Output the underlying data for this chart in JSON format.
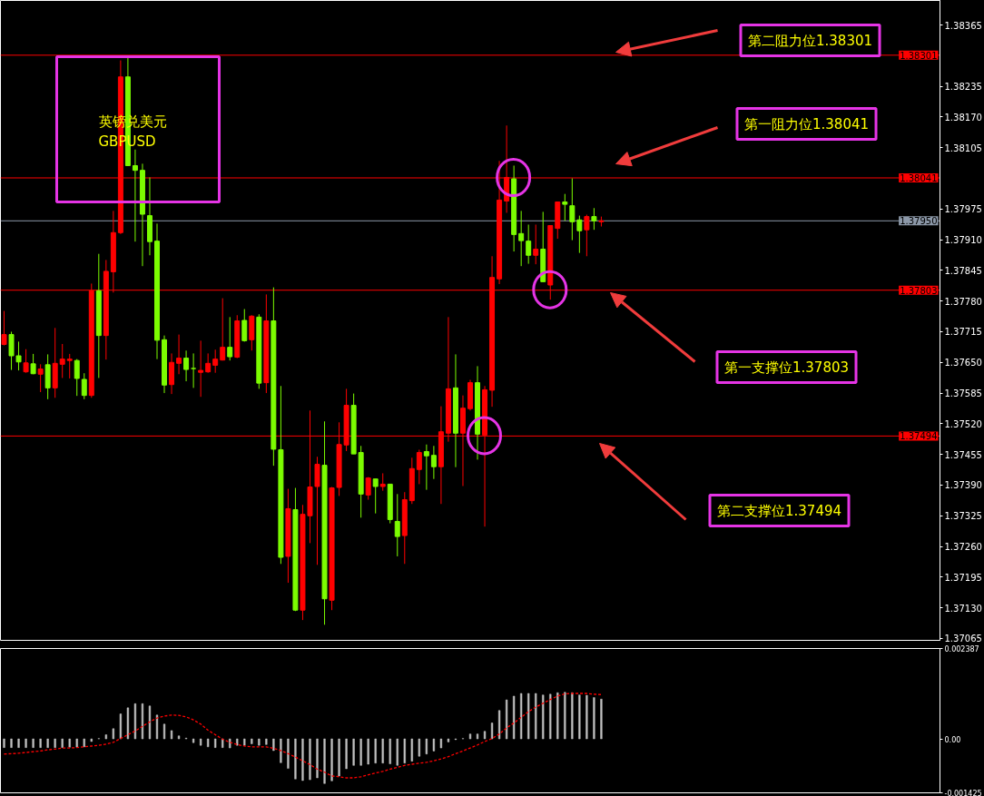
{
  "chart_data": [
    {
      "type": "candlestick",
      "title": "英镑兑美元",
      "subtitle": "GBPUSD",
      "categories": [
        null,
        null,
        null,
        null,
        null,
        null,
        null,
        null,
        null,
        null,
        null,
        null,
        null,
        null,
        null,
        null,
        null,
        null,
        null,
        null,
        null,
        null,
        null,
        null,
        null,
        null,
        null,
        null,
        null,
        null,
        null,
        null,
        null,
        null,
        null,
        null,
        null,
        null,
        null,
        null,
        null,
        null,
        null,
        null,
        null,
        null,
        null,
        null,
        null,
        null,
        null,
        null,
        null,
        null,
        null,
        null,
        null,
        null,
        null,
        null,
        null,
        null,
        null,
        null,
        null,
        null,
        null,
        null,
        null,
        null,
        null,
        null,
        null,
        null,
        null,
        null,
        null,
        null,
        null,
        null,
        null,
        null,
        null,
        null,
        null,
        null,
        null,
        null,
        null,
        null,
        null,
        null,
        null,
        null,
        null,
        null,
        null,
        null,
        null,
        null,
        null,
        null,
        null,
        null,
        null,
        null,
        null,
        null,
        null,
        null,
        null,
        null,
        null,
        null,
        null,
        null,
        null,
        null,
        null,
        null,
        null,
        null,
        null,
        null,
        null,
        null,
        null,
        null,
        null
      ],
      "ohlc": [
        [
          1.37688,
          1.37759,
          1.37686,
          1.37709
        ],
        [
          1.37709,
          1.37715,
          1.37634,
          1.37664
        ],
        [
          1.37664,
          1.37694,
          1.37633,
          1.37651
        ],
        [
          1.3763,
          1.37678,
          1.37628,
          1.37649
        ],
        [
          1.37647,
          1.37668,
          1.37625,
          1.37626
        ],
        [
          1.37625,
          1.37646,
          1.37587,
          1.37636
        ],
        [
          1.37645,
          1.37667,
          1.37572,
          1.37596
        ],
        [
          1.37596,
          1.37723,
          1.37575,
          1.37648
        ],
        [
          1.37646,
          1.37689,
          1.37617,
          1.37657
        ],
        [
          1.37654,
          1.37668,
          1.37616,
          1.37657
        ],
        [
          1.37654,
          1.37657,
          1.37579,
          1.37616
        ],
        [
          1.37614,
          1.37627,
          1.37572,
          1.3758
        ],
        [
          1.3758,
          1.37817,
          1.37575,
          1.37802
        ],
        [
          1.37802,
          1.3788,
          1.37617,
          1.37707
        ],
        [
          1.37707,
          1.37867,
          1.37656,
          1.37843
        ],
        [
          1.37842,
          1.37971,
          1.37798,
          1.37925
        ],
        [
          1.37925,
          1.3829,
          1.37922,
          1.38255
        ],
        [
          1.38255,
          1.38299,
          1.38067,
          1.38067
        ],
        [
          1.38067,
          1.38101,
          1.37906,
          1.38057
        ],
        [
          1.38057,
          1.38071,
          1.37854,
          1.37964
        ],
        [
          1.37961,
          1.38042,
          1.37877,
          1.37906
        ],
        [
          1.37907,
          1.37944,
          1.37657,
          1.37697
        ],
        [
          1.37698,
          1.37707,
          1.37585,
          1.37602
        ],
        [
          1.37603,
          1.37669,
          1.37583,
          1.3765
        ],
        [
          1.37648,
          1.37709,
          1.37625,
          1.37659
        ],
        [
          1.37659,
          1.37675,
          1.3761,
          1.37635
        ],
        [
          1.37637,
          1.37669,
          1.37596,
          1.37637
        ],
        [
          1.37629,
          1.37696,
          1.37577,
          1.37633
        ],
        [
          1.3763,
          1.37669,
          1.37628,
          1.37648
        ],
        [
          1.37644,
          1.37677,
          1.37628,
          1.37657
        ],
        [
          1.37655,
          1.37786,
          1.37654,
          1.37682
        ],
        [
          1.37682,
          1.37746,
          1.37654,
          1.37662
        ],
        [
          1.37661,
          1.3775,
          1.37659,
          1.37738
        ],
        [
          1.37739,
          1.37763,
          1.37694,
          1.37696
        ],
        [
          1.37698,
          1.3775,
          1.37675,
          1.37748
        ],
        [
          1.37746,
          1.37752,
          1.37594,
          1.37606
        ],
        [
          1.37607,
          1.37794,
          1.37585,
          1.37738
        ],
        [
          1.37738,
          1.37809,
          1.37431,
          1.37466
        ],
        [
          1.37465,
          1.376,
          1.37223,
          1.37237
        ],
        [
          1.37239,
          1.37382,
          1.37183,
          1.3734
        ],
        [
          1.37338,
          1.37384,
          1.37123,
          1.37125
        ],
        [
          1.37125,
          1.37348,
          1.37104,
          1.37328
        ],
        [
          1.37325,
          1.37548,
          1.37267,
          1.37386
        ],
        [
          1.37387,
          1.3745,
          1.37221,
          1.37434
        ],
        [
          1.37432,
          1.37525,
          1.37094,
          1.37149
        ],
        [
          1.37146,
          1.37386,
          1.37125,
          1.37384
        ],
        [
          1.37385,
          1.37523,
          1.37367,
          1.37476
        ],
        [
          1.37475,
          1.37594,
          1.37462,
          1.37559
        ],
        [
          1.37559,
          1.37584,
          1.37456,
          1.37456
        ],
        [
          1.37459,
          1.37473,
          1.37321,
          1.37371
        ],
        [
          1.37369,
          1.37407,
          1.37359,
          1.37405
        ],
        [
          1.37403,
          1.37403,
          1.3733,
          1.37387
        ],
        [
          1.37387,
          1.37415,
          1.37378,
          1.37392
        ],
        [
          1.37392,
          1.37392,
          1.37309,
          1.37317
        ],
        [
          1.37313,
          1.37371,
          1.37239,
          1.37281
        ],
        [
          1.37283,
          1.37375,
          1.37223,
          1.37359
        ],
        [
          1.37357,
          1.37448,
          1.3735,
          1.37425
        ],
        [
          1.37423,
          1.37465,
          1.37392,
          1.37459
        ],
        [
          1.37461,
          1.37476,
          1.3738,
          1.37452
        ],
        [
          1.37453,
          1.37473,
          1.37403,
          1.37429
        ],
        [
          1.37429,
          1.37557,
          1.3735,
          1.37503
        ],
        [
          1.375,
          1.37746,
          1.37482,
          1.37594
        ],
        [
          1.37596,
          1.37667,
          1.37428,
          1.375
        ],
        [
          1.375,
          1.3758,
          1.37388,
          1.37553
        ],
        [
          1.37552,
          1.37613,
          1.37548,
          1.37607
        ],
        [
          1.37607,
          1.37642,
          1.37444,
          1.37498
        ],
        [
          1.37496,
          1.376,
          1.37302,
          1.37592
        ],
        [
          1.37591,
          1.37875,
          1.37556,
          1.3783
        ],
        [
          1.37827,
          1.38077,
          1.37816,
          1.37994
        ],
        [
          1.37992,
          1.38152,
          1.37967,
          1.38042
        ],
        [
          1.38039,
          1.38067,
          1.37885,
          1.37921
        ],
        [
          1.37923,
          1.37971,
          1.37854,
          1.37908
        ],
        [
          1.37907,
          1.37942,
          1.37859,
          1.37877
        ],
        [
          1.37877,
          1.37942,
          1.37858,
          1.3789
        ],
        [
          1.3789,
          1.37969,
          1.37821,
          1.37821
        ],
        [
          1.37814,
          1.3794,
          1.37783,
          1.3794
        ],
        [
          1.37934,
          1.3799,
          1.37912,
          1.3799
        ],
        [
          1.3799,
          1.38007,
          1.3795,
          1.37985
        ],
        [
          1.37982,
          1.3804,
          1.37909,
          1.37948
        ],
        [
          1.37952,
          1.37961,
          1.37882,
          1.37929
        ],
        [
          1.37931,
          1.37963,
          1.37875,
          1.37959
        ],
        [
          1.37959,
          1.37977,
          1.37931,
          1.3795
        ],
        [
          1.37948,
          1.37959,
          1.37938,
          1.3795
        ],
        null,
        null,
        null,
        null,
        null,
        null,
        null,
        null,
        null,
        null,
        null,
        null,
        null,
        null,
        null,
        null,
        null,
        null,
        null,
        null,
        null,
        null,
        null,
        null,
        null,
        null,
        null,
        null,
        null,
        null,
        null,
        null,
        null,
        null,
        null,
        null,
        null,
        null,
        null,
        null,
        null,
        null,
        null,
        null,
        null,
        null
      ],
      "colors": [
        "#ff0000",
        "#7cfc00",
        "#7cfc00",
        "#ff0000",
        "#7cfc00",
        "#ff0000",
        "#7cfc00",
        "#ff0000",
        "#ff0000",
        "#ff0000",
        "#7cfc00",
        "#7cfc00",
        "#ff0000",
        "#7cfc00",
        "#ff0000",
        "#ff0000",
        "#ff0000",
        "#7cfc00",
        "#7cfc00",
        "#7cfc00",
        "#7cfc00",
        "#7cfc00",
        "#7cfc00",
        "#ff0000",
        "#ff0000",
        "#7cfc00",
        "#7cfc00",
        "#ff0000",
        "#ff0000",
        "#ff0000",
        "#ff0000",
        "#7cfc00",
        "#ff0000",
        "#7cfc00",
        "#ff0000",
        "#7cfc00",
        "#ff0000",
        "#7cfc00",
        "#7cfc00",
        "#ff0000",
        "#7cfc00",
        "#ff0000",
        "#ff0000",
        "#ff0000",
        "#7cfc00",
        "#ff0000",
        "#ff0000",
        "#ff0000",
        "#7cfc00",
        "#7cfc00",
        "#ff0000",
        "#7cfc00",
        "#ff0000",
        "#7cfc00",
        "#7cfc00",
        "#ff0000",
        "#ff0000",
        "#ff0000",
        "#7cfc00",
        "#7cfc00",
        "#ff0000",
        "#ff0000",
        "#7cfc00",
        "#ff0000",
        "#ff0000",
        "#7cfc00",
        "#ff0000",
        "#ff0000",
        "#ff0000",
        "#ff0000",
        "#7cfc00",
        "#7cfc00",
        "#7cfc00",
        "#ff0000",
        "#7cfc00",
        "#ff0000",
        "#ff0000",
        "#7cfc00",
        "#7cfc00",
        "#7cfc00",
        "#ff0000",
        "#7cfc00",
        "#ff0000",
        null,
        null,
        null,
        null,
        null,
        null,
        null,
        null,
        null,
        null,
        null,
        null,
        null,
        null,
        null,
        null,
        null,
        null,
        null,
        null,
        null,
        null,
        null,
        null,
        null,
        null,
        null,
        null,
        null,
        null,
        null,
        null,
        null,
        null,
        null,
        null,
        null,
        null,
        null,
        null,
        null,
        null,
        null,
        null,
        null,
        null
      ],
      "ylim": [
        1.37061,
        1.38417
      ],
      "yticks": [
        1.38365,
        1.38235,
        {
          "value": 1.3817,
          "label": "1.38170"
        },
        1.38105,
        1.37975,
        {
          "value": 1.3791,
          "label": "1.37910"
        },
        1.37845,
        {
          "value": 1.3778,
          "label": "1.37780"
        },
        1.37715,
        {
          "value": 1.3765,
          "label": "1.37650"
        },
        1.37585,
        {
          "value": 1.3752,
          "label": "1.37520"
        },
        1.37455,
        {
          "value": 1.3739,
          "label": "1.37390"
        },
        1.37325,
        {
          "value": 1.3726,
          "label": "1.37260"
        },
        1.37195,
        {
          "value": 1.3713,
          "label": "1.37130"
        },
        1.37065
      ],
      "ref_lines": [
        {
          "axis": "y",
          "value": 1.38301,
          "label": "1.38301",
          "color": "#ff0000"
        },
        {
          "axis": "y",
          "value": 1.38041,
          "label": "1.38041",
          "color": "#ff0000"
        },
        {
          "axis": "y",
          "value": 1.3795,
          "label": "1.37950",
          "color": "#8c98a8"
        },
        {
          "axis": "y",
          "value": 1.37803,
          "label": "1.37803",
          "color": "#ff0000"
        },
        {
          "axis": "y",
          "value": 1.37494,
          "label": "1.37494",
          "color": "#ff0000"
        }
      ],
      "annotations": [
        "第二阻力位1.38301",
        "第一阻力位1.38041",
        "第一支撑位1.37803",
        "第二支撑位1.37494"
      ],
      "tick_labels": "y"
    },
    {
      "type": "bar",
      "categories": [
        null,
        null,
        null,
        null,
        null,
        null,
        null,
        null,
        null,
        null,
        null,
        null,
        null,
        null,
        null,
        null,
        null,
        null,
        null,
        null,
        null,
        null,
        null,
        null,
        null,
        null,
        null,
        null,
        null,
        null,
        null,
        null,
        null,
        null,
        null,
        null,
        null,
        null,
        null,
        null,
        null,
        null,
        null,
        null,
        null,
        null,
        null,
        null,
        null,
        null,
        null,
        null,
        null,
        null,
        null,
        null,
        null,
        null,
        null,
        null,
        null,
        null,
        null,
        null,
        null,
        null,
        null,
        null,
        null,
        null,
        null,
        null,
        null,
        null,
        null,
        null,
        null,
        null,
        null,
        null,
        null,
        null,
        null,
        null,
        null,
        null,
        null,
        null,
        null,
        null,
        null,
        null,
        null,
        null,
        null,
        null,
        null,
        null,
        null,
        null,
        null,
        null,
        null,
        null,
        null,
        null,
        null,
        null,
        null,
        null,
        null,
        null,
        null,
        null,
        null,
        null,
        null,
        null,
        null,
        null,
        null,
        null,
        null,
        null,
        null,
        null,
        null,
        null,
        null
      ],
      "series": [
        {
          "type": "bar",
          "color": "#c0c0c0",
          "values": [
            -0.00023,
            -0.00023,
            -0.00023,
            -0.00023,
            -0.00023,
            -0.00023,
            -0.00023,
            -0.00023,
            -0.00023,
            -0.00022,
            -0.00022,
            -0.00021,
            -7e-05,
            1e-05,
            0.00011,
            0.00027,
            0.00066,
            0.00082,
            0.00093,
            0.00093,
            0.00087,
            0.00063,
            0.00039,
            0.00022,
            8e-05,
            2e-05,
            -0.0001,
            -0.00017,
            -0.00021,
            -0.00023,
            -0.00023,
            -0.00024,
            -0.00017,
            -0.00017,
            -0.00013,
            -0.00017,
            -0.00015,
            -0.00031,
            -0.00063,
            -0.00078,
            -0.00106,
            -0.0011,
            -0.00108,
            -0.00103,
            -0.00118,
            -0.00111,
            -0.00098,
            -0.00079,
            -0.0007,
            -0.0007,
            -0.00067,
            -0.00064,
            -0.00064,
            -0.00066,
            -0.0007,
            -0.00064,
            -0.00059,
            -0.00046,
            -0.0004,
            -0.00032,
            -0.00024,
            -8e-05,
            -2e-05,
            1e-05,
            0.00013,
            0.00013,
            0.0002,
            0.00042,
            0.00075,
            0.00103,
            0.00113,
            0.0012,
            0.0012,
            0.0012,
            0.00116,
            0.00118,
            0.00122,
            0.00123,
            0.00122,
            0.00116,
            0.00115,
            0.00109,
            0.00105,
            null,
            null,
            null,
            null,
            null,
            null,
            null,
            null,
            null,
            null,
            null,
            null,
            null,
            null,
            null,
            null,
            null,
            null,
            null,
            null,
            null,
            null,
            null,
            null,
            null,
            null,
            null,
            null,
            null,
            null,
            null,
            null,
            null,
            null,
            null,
            null,
            null,
            null,
            null,
            null,
            null,
            null,
            null,
            null,
            null,
            null
          ]
        },
        {
          "type": "line",
          "color": "#ff0000",
          "line_style": "dotted",
          "values": [
            -0.0004,
            -0.00039,
            -0.00038,
            -0.00036,
            -0.00034,
            -0.00032,
            -0.00029,
            -0.00027,
            -0.00024,
            -0.00024,
            -0.00023,
            -0.00021,
            -0.00019,
            -0.00017,
            -0.00014,
            -9e-05,
            1e-05,
            0.00011,
            0.00021,
            0.00033,
            0.00045,
            0.00055,
            0.0006,
            0.00063,
            0.00062,
            0.00058,
            0.0005,
            0.00039,
            0.00023,
            0.00011,
            -1e-05,
            -9e-05,
            -0.00015,
            -0.00019,
            -0.00021,
            -0.00021,
            -0.00021,
            -0.00025,
            -0.00031,
            -0.00039,
            -0.00048,
            -0.00058,
            -0.00068,
            -0.0008,
            -0.00088,
            -0.00098,
            -0.001,
            -0.00103,
            -0.00103,
            -0.001,
            -0.00095,
            -0.0009,
            -0.00086,
            -0.0008,
            -0.00075,
            -0.0007,
            -0.00067,
            -0.00064,
            -0.00062,
            -0.00058,
            -0.00053,
            -0.00047,
            -0.00039,
            -0.00032,
            -0.00024,
            -0.00016,
            -7e-05,
            1e-05,
            0.00013,
            0.00029,
            0.00042,
            0.00057,
            0.00072,
            0.00084,
            0.00094,
            0.00104,
            0.00113,
            0.00119,
            0.0012,
            0.0012,
            0.0012,
            0.00118,
            0.00117,
            null,
            null,
            null,
            null,
            null,
            null,
            null,
            null,
            null,
            null,
            null,
            null,
            null,
            null,
            null,
            null,
            null,
            null,
            null,
            null,
            null,
            null,
            null,
            null,
            null,
            null,
            null,
            null,
            null,
            null,
            null,
            null,
            null,
            null,
            null,
            null,
            null,
            null,
            null,
            null,
            null,
            null,
            null,
            null,
            null,
            null
          ]
        }
      ],
      "ylim": [
        -0.001425,
        0.002387
      ],
      "yticks": [
        0.002387,
        {
          "value": 0,
          "label": "0.00"
        },
        -0.001425
      ],
      "tick_labels": "y"
    }
  ]
}
